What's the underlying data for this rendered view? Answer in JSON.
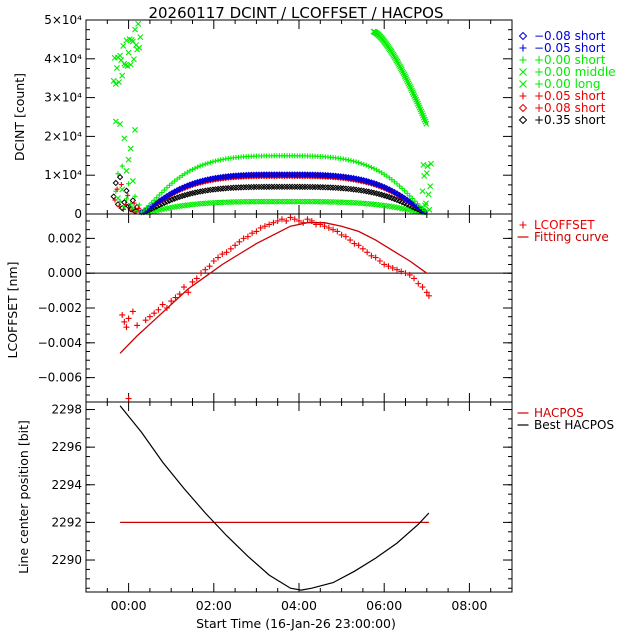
{
  "title": "20260117 DCINT / LCOFFSET / HACPOS",
  "xlabel": "Start Time (16-Jan-26 23:00:00)",
  "x_ticks": [
    "00:00",
    "02:00",
    "04:00",
    "06:00",
    "08:00"
  ],
  "chart_data": [
    {
      "type": "scatter",
      "ylabel": "DCINT [count]",
      "ylim": [
        0,
        50000
      ],
      "y_ticks": [
        "0",
        "1×10⁴",
        "2×10⁴",
        "3×10⁴",
        "4×10⁴",
        "5×10⁴"
      ],
      "grid": false,
      "legend_position": "right",
      "series": [
        {
          "name": "−0.08 short",
          "marker": "diamond",
          "color": "#0000dd",
          "peak": 10200
        },
        {
          "name": "−0.05 short",
          "marker": "plus",
          "color": "#0000dd",
          "peak": 10000
        },
        {
          "name": "+0.00 short",
          "marker": "plus",
          "color": "#00ee00",
          "peak": 15000
        },
        {
          "name": "+0.00 middle",
          "marker": "cross",
          "color": "#00ee00",
          "peak": 48000
        },
        {
          "name": "+0.00 long",
          "marker": "cross",
          "color": "#00ee00",
          "peak": 3200
        },
        {
          "name": "+0.05 short",
          "marker": "plus",
          "color": "#ee0000",
          "peak": 10000
        },
        {
          "name": "+0.08 short",
          "marker": "diamond",
          "color": "#ee0000",
          "peak": 9800
        },
        {
          "name": "+0.35 short",
          "marker": "diamond",
          "color": "#000000",
          "peak": 7000
        }
      ]
    },
    {
      "type": "scatter",
      "ylabel": "LCOFFSET [nm]",
      "ylim": [
        -0.0074,
        0.0034
      ],
      "y_ticks": [
        "−0.006",
        "−0.004",
        "−0.002",
        "0.000",
        "0.002"
      ],
      "legend_position": "right",
      "series": [
        {
          "name": "LCOFFSET",
          "marker": "plus",
          "color": "#ee0000",
          "x_hours": [
            -0.15,
            -0.1,
            -0.05,
            0.0,
            0.1,
            0.2,
            0.4,
            0.5,
            0.6,
            0.7,
            0.8,
            0.9,
            1.0,
            1.1,
            1.2,
            1.3,
            1.4,
            1.5,
            1.6,
            1.7,
            1.8,
            1.9,
            2.0,
            2.1,
            2.2,
            2.3,
            2.4,
            2.5,
            2.6,
            2.7,
            2.8,
            2.9,
            3.0,
            3.1,
            3.2,
            3.3,
            3.4,
            3.5,
            3.6,
            3.7,
            3.8,
            3.9,
            4.0,
            4.1,
            4.2,
            4.3,
            4.4,
            4.5,
            4.6,
            4.7,
            4.8,
            4.9,
            5.0,
            5.1,
            5.2,
            5.3,
            5.4,
            5.5,
            5.6,
            5.7,
            5.8,
            5.9,
            6.0,
            6.1,
            6.2,
            6.3,
            6.4,
            6.5,
            6.6,
            6.7,
            6.8,
            6.9,
            7.0,
            7.05,
            0.0
          ],
          "values": [
            -0.0024,
            -0.0028,
            -0.0031,
            -0.0026,
            -0.0022,
            -0.003,
            -0.0027,
            -0.0025,
            -0.0023,
            -0.0021,
            -0.0018,
            -0.002,
            -0.0016,
            -0.0014,
            -0.0012,
            -0.0008,
            -0.0011,
            -0.0005,
            -0.0003,
            0.0,
            0.0002,
            0.0004,
            0.0007,
            0.0009,
            0.0011,
            0.0012,
            0.0014,
            0.0016,
            0.0018,
            0.002,
            0.0021,
            0.0023,
            0.0024,
            0.0026,
            0.0027,
            0.0028,
            0.0029,
            0.003,
            0.0031,
            0.003,
            0.0032,
            0.0031,
            0.003,
            0.0029,
            0.0031,
            0.003,
            0.0028,
            0.0028,
            0.0027,
            0.0026,
            0.0025,
            0.0024,
            0.0022,
            0.0021,
            0.0019,
            0.0017,
            0.0016,
            0.0014,
            0.0012,
            0.001,
            0.0009,
            0.0007,
            0.0005,
            0.0004,
            0.0003,
            0.0002,
            0.0001,
            0.0,
            -0.0001,
            -0.0003,
            -0.0006,
            -0.0008,
            -0.0011,
            -0.0013,
            -0.0072
          ]
        },
        {
          "name": "Fitting curve",
          "marker": "line",
          "color": "#cc0000",
          "x_hours": [
            -0.2,
            0.2,
            0.6,
            1.0,
            1.4,
            1.8,
            2.2,
            2.6,
            3.0,
            3.4,
            3.8,
            4.2,
            4.6,
            5.0,
            5.4,
            5.8,
            6.2,
            6.6,
            7.0
          ],
          "values": [
            -0.0046,
            -0.0036,
            -0.0027,
            -0.0018,
            -0.0009,
            -0.0002,
            0.0005,
            0.0011,
            0.0017,
            0.0022,
            0.0027,
            0.0029,
            0.0029,
            0.0027,
            0.0024,
            0.0019,
            0.0013,
            0.0007,
            0.0
          ]
        }
      ]
    },
    {
      "type": "line",
      "ylabel": "Line center position [bit]",
      "ylim": [
        2288.3,
        2298.4
      ],
      "y_ticks": [
        "2290",
        "2292",
        "2294",
        "2296",
        "2298"
      ],
      "legend_position": "right",
      "series": [
        {
          "name": "HACPOS",
          "color": "#cc0000",
          "x_hours": [
            -0.2,
            7.05
          ],
          "values": [
            2292,
            2292
          ]
        },
        {
          "name": "Best HACPOS",
          "color": "#000000",
          "x_hours": [
            -0.2,
            0.3,
            0.8,
            1.3,
            1.8,
            2.3,
            2.8,
            3.3,
            3.8,
            4.05,
            4.3,
            4.8,
            5.3,
            5.8,
            6.3,
            6.8,
            7.05
          ],
          "values": [
            2298.2,
            2296.8,
            2295.2,
            2293.8,
            2292.5,
            2291.3,
            2290.2,
            2289.2,
            2288.5,
            2288.4,
            2288.5,
            2288.8,
            2289.4,
            2290.1,
            2290.9,
            2291.9,
            2292.5
          ]
        }
      ]
    }
  ]
}
